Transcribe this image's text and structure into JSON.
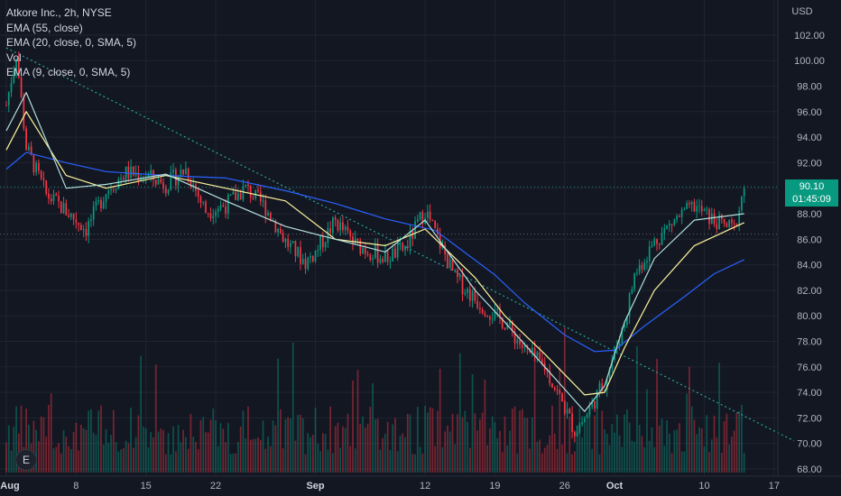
{
  "legend": {
    "title": "Atkore Inc., 2h, NYSE",
    "ema55": "EMA (55, close)",
    "ema20": "EMA (20, close, 0, SMA, 5)",
    "vol": "Vol",
    "ema9": "EMA (9, close, 0, SMA, 5)"
  },
  "price_axis": {
    "currency": "USD",
    "current_price": "90.10",
    "countdown": "01:45:09"
  },
  "logo": {
    "letter": "E"
  },
  "colors": {
    "background": "#131722",
    "up": "#089981",
    "down": "#f23645",
    "ema55": "#2962ff",
    "ema20": "#fff59d",
    "ema9": "#b2dfdb",
    "trendline": "#26a69a"
  },
  "chart_data": {
    "type": "candlestick",
    "y_ticks": [
      "102.00",
      "100.00",
      "98.00",
      "96.00",
      "94.00",
      "92.00",
      "90.00",
      "88.00",
      "86.00",
      "84.00",
      "82.00",
      "80.00",
      "78.00",
      "76.00",
      "74.00",
      "72.00",
      "70.00",
      "68.00"
    ],
    "ylim": [
      68,
      103
    ],
    "x_ticks": [
      "Aug",
      "8",
      "15",
      "22",
      "Sep",
      "12",
      "19",
      "26",
      "Oct",
      "10",
      "17"
    ],
    "grid": true,
    "reference_lines": [
      90.1,
      86.4
    ],
    "trendline": [
      {
        "x": "Aug 1",
        "y": 101.0
      },
      {
        "x": "Oct 19",
        "y": 70.2
      }
    ],
    "candle_path": [
      {
        "x": "Aug 1",
        "price": 96.5
      },
      {
        "x": "Aug 2",
        "price": 100.6
      },
      {
        "x": "Aug 3",
        "price": 93.2
      },
      {
        "x": "Aug 5",
        "price": 89.5
      },
      {
        "x": "Aug 7",
        "price": 88.2
      },
      {
        "x": "Aug 9",
        "price": 86.8
      },
      {
        "x": "Aug 11",
        "price": 89.8
      },
      {
        "x": "Aug 13",
        "price": 91.2
      },
      {
        "x": "Aug 15",
        "price": 91.0
      },
      {
        "x": "Aug 17",
        "price": 90.3
      },
      {
        "x": "Aug 19",
        "price": 91.5
      },
      {
        "x": "Aug 21",
        "price": 88.2
      },
      {
        "x": "Aug 23",
        "price": 88.7
      },
      {
        "x": "Aug 25",
        "price": 90.0
      },
      {
        "x": "Aug 27",
        "price": 88.5
      },
      {
        "x": "Aug 29",
        "price": 85.8
      },
      {
        "x": "Aug 31",
        "price": 84.2
      },
      {
        "x": "Sep 1",
        "price": 85.0
      },
      {
        "x": "Sep 3",
        "price": 87.4
      },
      {
        "x": "Sep 5",
        "price": 85.6
      },
      {
        "x": "Sep 8",
        "price": 84.5
      },
      {
        "x": "Sep 10",
        "price": 85.3
      },
      {
        "x": "Sep 12",
        "price": 88.3
      },
      {
        "x": "Sep 13",
        "price": 86.5
      },
      {
        "x": "Sep 15",
        "price": 83.0
      },
      {
        "x": "Sep 17",
        "price": 81.3
      },
      {
        "x": "Sep 19",
        "price": 80.0
      },
      {
        "x": "Sep 20",
        "price": 79.5
      },
      {
        "x": "Sep 22",
        "price": 77.3
      },
      {
        "x": "Sep 24",
        "price": 76.0
      },
      {
        "x": "Sep 26",
        "price": 72.8
      },
      {
        "x": "Sep 27",
        "price": 71.0
      },
      {
        "x": "Sep 28",
        "price": 72.0
      },
      {
        "x": "Sep 30",
        "price": 74.8
      },
      {
        "x": "Oct 2",
        "price": 79.5
      },
      {
        "x": "Oct 3",
        "price": 83.2
      },
      {
        "x": "Oct 5",
        "price": 85.8
      },
      {
        "x": "Oct 7",
        "price": 87.5
      },
      {
        "x": "Oct 9",
        "price": 88.6
      },
      {
        "x": "Oct 11",
        "price": 87.4
      },
      {
        "x": "Oct 13",
        "price": 86.8
      },
      {
        "x": "Oct 14",
        "price": 90.1
      }
    ],
    "ema55": [
      {
        "x": "Aug 1",
        "y": 91.5
      },
      {
        "x": "Aug 3",
        "y": 92.8
      },
      {
        "x": "Aug 7",
        "y": 92.0
      },
      {
        "x": "Aug 11",
        "y": 91.3
      },
      {
        "x": "Aug 17",
        "y": 91.0
      },
      {
        "x": "Aug 23",
        "y": 90.8
      },
      {
        "x": "Aug 29",
        "y": 89.8
      },
      {
        "x": "Sep 3",
        "y": 88.8
      },
      {
        "x": "Sep 8",
        "y": 87.6
      },
      {
        "x": "Sep 13",
        "y": 86.7
      },
      {
        "x": "Sep 19",
        "y": 83.2
      },
      {
        "x": "Sep 22",
        "y": 81.0
      },
      {
        "x": "Sep 26",
        "y": 78.5
      },
      {
        "x": "Sep 29",
        "y": 77.2
      },
      {
        "x": "Oct 1",
        "y": 77.3
      },
      {
        "x": "Oct 4",
        "y": 79.2
      },
      {
        "x": "Oct 8",
        "y": 81.5
      },
      {
        "x": "Oct 11",
        "y": 83.3
      },
      {
        "x": "Oct 14",
        "y": 84.4
      }
    ],
    "ema20": [
      {
        "x": "Aug 1",
        "y": 93.0
      },
      {
        "x": "Aug 3",
        "y": 96.0
      },
      {
        "x": "Aug 7",
        "y": 91.0
      },
      {
        "x": "Aug 11",
        "y": 90.0
      },
      {
        "x": "Aug 17",
        "y": 91.0
      },
      {
        "x": "Aug 23",
        "y": 90.0
      },
      {
        "x": "Aug 29",
        "y": 89.0
      },
      {
        "x": "Sep 3",
        "y": 86.0
      },
      {
        "x": "Sep 8",
        "y": 85.5
      },
      {
        "x": "Sep 12",
        "y": 86.8
      },
      {
        "x": "Sep 17",
        "y": 83.0
      },
      {
        "x": "Sep 20",
        "y": 80.0
      },
      {
        "x": "Sep 24",
        "y": 77.0
      },
      {
        "x": "Sep 28",
        "y": 73.8
      },
      {
        "x": "Sep 30",
        "y": 74.0
      },
      {
        "x": "Oct 2",
        "y": 77.5
      },
      {
        "x": "Oct 5",
        "y": 82.0
      },
      {
        "x": "Oct 9",
        "y": 85.5
      },
      {
        "x": "Oct 14",
        "y": 87.3
      }
    ],
    "ema9": [
      {
        "x": "Aug 1",
        "y": 94.5
      },
      {
        "x": "Aug 3",
        "y": 97.5
      },
      {
        "x": "Aug 7",
        "y": 90.0
      },
      {
        "x": "Aug 11",
        "y": 90.3
      },
      {
        "x": "Aug 17",
        "y": 91.1
      },
      {
        "x": "Aug 23",
        "y": 89.0
      },
      {
        "x": "Aug 29",
        "y": 87.0
      },
      {
        "x": "Sep 3",
        "y": 86.0
      },
      {
        "x": "Sep 8",
        "y": 85.0
      },
      {
        "x": "Sep 12",
        "y": 87.5
      },
      {
        "x": "Sep 17",
        "y": 82.0
      },
      {
        "x": "Sep 20",
        "y": 79.5
      },
      {
        "x": "Sep 24",
        "y": 76.0
      },
      {
        "x": "Sep 28",
        "y": 72.5
      },
      {
        "x": "Sep 30",
        "y": 74.5
      },
      {
        "x": "Oct 2",
        "y": 79.5
      },
      {
        "x": "Oct 5",
        "y": 84.5
      },
      {
        "x": "Oct 9",
        "y": 87.5
      },
      {
        "x": "Oct 14",
        "y": 88.0
      }
    ]
  }
}
